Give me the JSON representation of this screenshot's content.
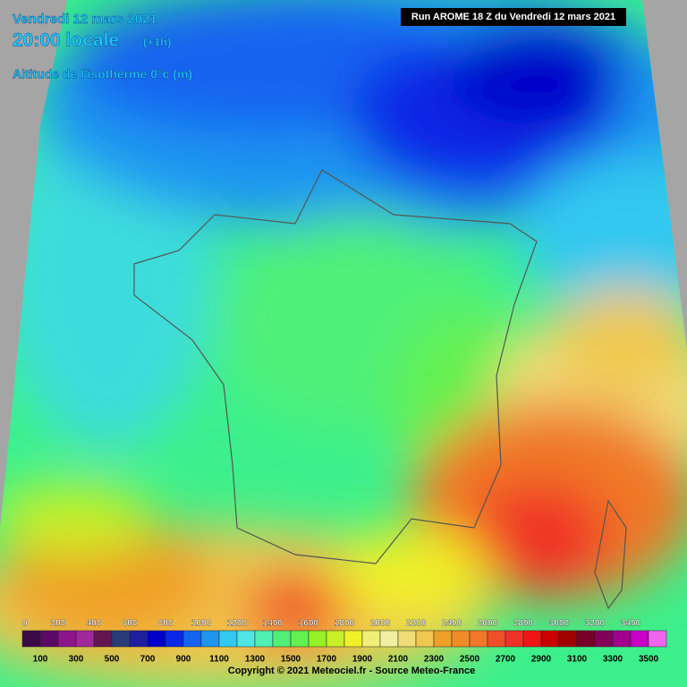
{
  "header": {
    "date": "Vendredi 12 mars 2021",
    "time": "20:00 locale",
    "offset": "(+1h)",
    "parameter": "Altitude de l'isotherme 0°c (m)",
    "run": "Run AROME 18 Z du Vendredi 12 mars 2021"
  },
  "legend": {
    "labels": [
      0,
      100,
      200,
      300,
      400,
      500,
      600,
      700,
      800,
      900,
      1000,
      1100,
      1200,
      1300,
      1400,
      1500,
      1600,
      1700,
      1800,
      1900,
      2000,
      2100,
      2200,
      2300,
      2400,
      2500,
      2600,
      2700,
      2800,
      2900,
      3000,
      3100,
      3200,
      3300,
      3400,
      3500
    ],
    "colors": [
      "#3c0a46",
      "#5a0a64",
      "#8c148c",
      "#a0289b",
      "#641450",
      "#283c78",
      "#1e1ea0",
      "#0000c8",
      "#0a28e6",
      "#1464f0",
      "#1e96f0",
      "#32c8f0",
      "#50e6e6",
      "#50f0b4",
      "#50f078",
      "#64f050",
      "#96f028",
      "#c8f028",
      "#f0f028",
      "#f0f078",
      "#f0f0a0",
      "#f0dc78",
      "#f0c850",
      "#f0a028",
      "#f08c28",
      "#f07828",
      "#f05028",
      "#f03228",
      "#f01414",
      "#c80000",
      "#a00000",
      "#780028",
      "#82005a",
      "#a0008c",
      "#c800c8",
      "#f064f0"
    ]
  },
  "footer": {
    "copyright": "Copyright © 2021 Meteociel.fr - Source Meteo-France"
  }
}
